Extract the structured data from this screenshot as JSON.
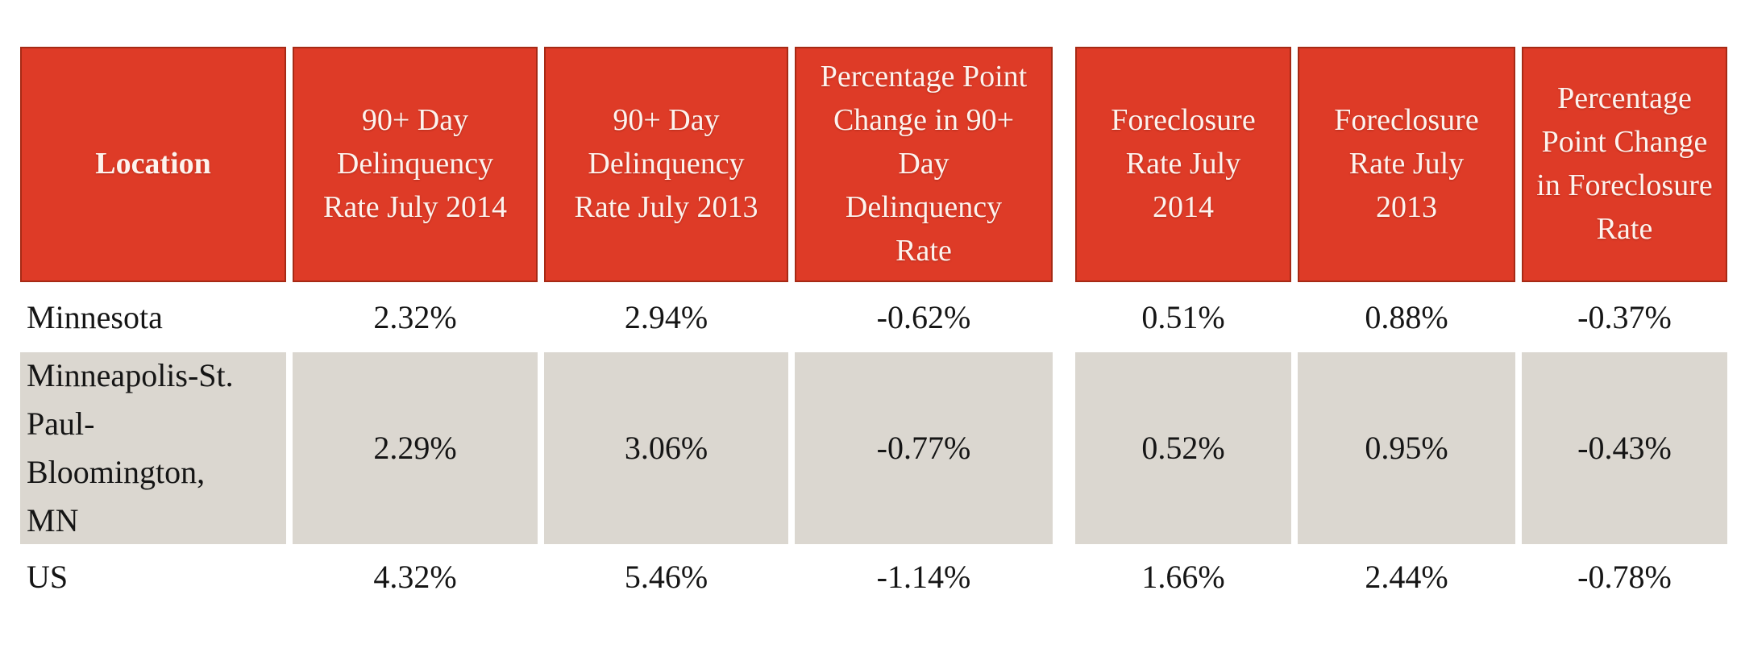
{
  "table": {
    "columns": [
      {
        "label": "Location"
      },
      {
        "label": "90+ Day\nDelinquency\nRate July 2014"
      },
      {
        "label": "90+ Day\nDelinquency\nRate July 2013"
      },
      {
        "label": "Percentage Point\nChange in 90+\nDay\nDelinquency\nRate"
      },
      {
        "label": "Foreclosure\nRate July\n2014"
      },
      {
        "label": "Foreclosure\nRate July\n2013"
      },
      {
        "label": "Percentage\nPoint Change\nin Foreclosure\nRate"
      }
    ],
    "rows": [
      {
        "location": "Minnesota",
        "values": [
          "2.32%",
          "2.94%",
          "-0.62%",
          "0.51%",
          "0.88%",
          "-0.37%"
        ]
      },
      {
        "location": "Minneapolis-St.\nPaul-\nBloomington,\nMN",
        "values": [
          "2.29%",
          "3.06%",
          "-0.77%",
          "0.52%",
          "0.95%",
          "-0.43%"
        ]
      },
      {
        "location": "US",
        "values": [
          "4.32%",
          "5.46%",
          "-1.14%",
          "1.66%",
          "2.44%",
          "-0.78%"
        ]
      }
    ]
  },
  "colors": {
    "header_bg": "#DE3B27",
    "header_border": "#A62A15",
    "header_text": "#FDF3EE",
    "zebra_bg": "#DBD7D0",
    "body_text": "#151515",
    "page_bg": "#FFFFFF"
  },
  "chart_data": {
    "type": "table",
    "title": "",
    "columns": [
      "Location",
      "90+ Day Delinquency Rate July 2014",
      "90+ Day Delinquency Rate July 2013",
      "Percentage Point Change in 90+ Day Delinquency Rate",
      "Foreclosure Rate July 2014",
      "Foreclosure Rate July 2013",
      "Percentage Point Change in Foreclosure Rate"
    ],
    "rows": [
      [
        "Minnesota",
        "2.32%",
        "2.94%",
        "-0.62%",
        "0.51%",
        "0.88%",
        "-0.37%"
      ],
      [
        "Minneapolis-St. Paul-Bloomington, MN",
        "2.29%",
        "3.06%",
        "-0.77%",
        "0.52%",
        "0.95%",
        "-0.43%"
      ],
      [
        "US",
        "4.32%",
        "5.46%",
        "-1.14%",
        "1.66%",
        "2.44%",
        "-0.78%"
      ]
    ],
    "layout_hints": {
      "header_fill": "#DE3B27",
      "header_text_color": "white",
      "zebra_rows": [
        1
      ],
      "zebra_fill": "#DBD7D0",
      "grid": "white gaps between cells"
    }
  }
}
